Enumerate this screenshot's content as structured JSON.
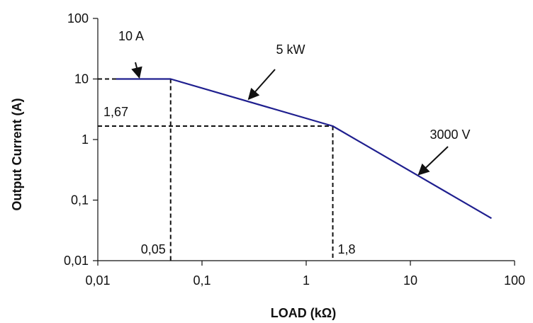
{
  "chart_data": {
    "type": "line",
    "title": "",
    "xlabel": "LOAD (kΩ)",
    "ylabel": "Output Current (A)",
    "xscale": "log",
    "yscale": "log",
    "xlim": [
      0.01,
      100
    ],
    "ylim": [
      0.01,
      100
    ],
    "grid": false,
    "xticks": [
      "0,01",
      "0,1",
      "1",
      "10",
      "100"
    ],
    "yticks": [
      "0,01",
      "0,1",
      "1",
      "10",
      "100"
    ],
    "xtick_values": [
      0.01,
      0.1,
      1,
      10,
      100
    ],
    "ytick_values": [
      0.01,
      0.1,
      1,
      10,
      100
    ],
    "line_color": "#1f1f8f",
    "series": [
      {
        "x": [
          0.015,
          0.05,
          1.8,
          60
        ],
        "y": [
          10,
          10,
          1.67,
          0.05
        ]
      }
    ],
    "reference_lines": [
      {
        "x": 0.05,
        "y": 10,
        "label": "0,05"
      },
      {
        "x": 1.8,
        "y": 1.67,
        "label": "1,8",
        "ylabel": "1,67"
      }
    ],
    "annotations": [
      {
        "text": "10 A",
        "arrow_to_x": 0.025,
        "arrow_to_y": 10
      },
      {
        "text": "5 kW",
        "arrow_to_x": 0.28,
        "arrow_to_y": 4.4
      },
      {
        "text": "3000 V",
        "arrow_to_x": 12,
        "arrow_to_y": 0.25
      }
    ]
  }
}
